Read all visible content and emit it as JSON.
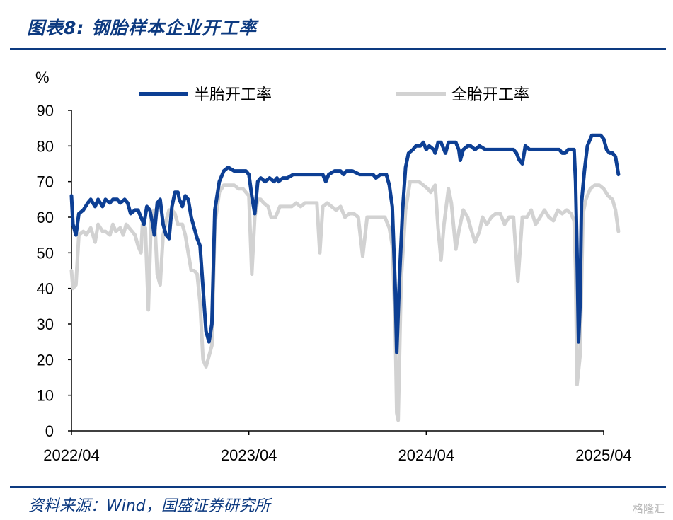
{
  "header": {
    "title": "图表8:  钢胎样本企业开工率"
  },
  "footer": {
    "source": "资料来源：Wind，国盛证券研究所",
    "watermark": "格隆汇"
  },
  "chart_data": {
    "type": "line",
    "ylabel": "%",
    "ylim": [
      0,
      90
    ],
    "yticks": [
      "0",
      "10",
      "20",
      "30",
      "40",
      "50",
      "60",
      "70",
      "80",
      "90"
    ],
    "xlim": [
      0,
      36
    ],
    "xticks": [
      {
        "label": "2022/04",
        "x": 0
      },
      {
        "label": "2023/04",
        "x": 12
      },
      {
        "label": "2024/04",
        "x": 24
      },
      {
        "label": "2025/04",
        "x": 36
      }
    ],
    "grid": false,
    "legend": "top",
    "series": [
      {
        "name": "半胎开工率",
        "color": "#0d3f94",
        "points": [
          [
            0,
            66
          ],
          [
            0.1,
            58
          ],
          [
            0.3,
            55
          ],
          [
            0.5,
            61
          ],
          [
            0.8,
            62
          ],
          [
            1.1,
            64
          ],
          [
            1.3,
            65
          ],
          [
            1.6,
            63
          ],
          [
            1.8,
            65
          ],
          [
            2.1,
            63
          ],
          [
            2.3,
            65
          ],
          [
            2.6,
            64
          ],
          [
            2.8,
            65
          ],
          [
            3.1,
            65
          ],
          [
            3.3,
            64
          ],
          [
            3.6,
            65
          ],
          [
            3.8,
            64
          ],
          [
            4.0,
            61
          ],
          [
            4.3,
            62
          ],
          [
            4.5,
            62
          ],
          [
            4.7,
            60
          ],
          [
            4.9,
            58
          ],
          [
            5.1,
            63
          ],
          [
            5.3,
            62
          ],
          [
            5.5,
            58
          ],
          [
            5.6,
            55
          ],
          [
            5.8,
            64
          ],
          [
            6.0,
            65
          ],
          [
            6.2,
            58
          ],
          [
            6.4,
            55
          ],
          [
            6.6,
            54
          ],
          [
            6.8,
            63
          ],
          [
            7.0,
            67
          ],
          [
            7.2,
            67
          ],
          [
            7.3,
            65
          ],
          [
            7.5,
            63
          ],
          [
            7.7,
            66
          ],
          [
            7.9,
            65
          ],
          [
            8.1,
            60
          ],
          [
            8.3,
            57
          ],
          [
            8.5,
            54
          ],
          [
            8.7,
            52
          ],
          [
            8.9,
            40
          ],
          [
            9.1,
            28
          ],
          [
            9.3,
            25
          ],
          [
            9.5,
            30
          ],
          [
            9.7,
            62
          ],
          [
            10.0,
            70
          ],
          [
            10.3,
            73
          ],
          [
            10.6,
            74
          ],
          [
            11.0,
            73
          ],
          [
            11.4,
            73
          ],
          [
            11.8,
            73
          ],
          [
            12.0,
            72
          ],
          [
            12.2,
            66
          ],
          [
            12.4,
            61
          ],
          [
            12.6,
            70
          ],
          [
            12.8,
            71
          ],
          [
            13.1,
            70
          ],
          [
            13.4,
            71
          ],
          [
            13.7,
            70
          ],
          [
            13.9,
            71
          ],
          [
            14.0,
            70
          ],
          [
            14.3,
            71
          ],
          [
            14.6,
            71
          ],
          [
            15.0,
            72
          ],
          [
            15.5,
            72
          ],
          [
            16.0,
            72
          ],
          [
            16.5,
            72
          ],
          [
            17.0,
            72
          ],
          [
            17.2,
            70
          ],
          [
            17.4,
            72
          ],
          [
            17.8,
            73
          ],
          [
            18.2,
            73
          ],
          [
            18.4,
            72
          ],
          [
            18.6,
            73
          ],
          [
            19.0,
            73
          ],
          [
            19.5,
            72
          ],
          [
            20.0,
            72
          ],
          [
            20.4,
            72
          ],
          [
            20.6,
            71
          ],
          [
            20.9,
            72
          ],
          [
            21.3,
            72
          ],
          [
            21.5,
            69
          ],
          [
            21.7,
            63
          ],
          [
            21.9,
            40
          ],
          [
            22.0,
            22
          ],
          [
            22.2,
            44
          ],
          [
            22.4,
            62
          ],
          [
            22.6,
            74
          ],
          [
            22.8,
            78
          ],
          [
            23.1,
            79
          ],
          [
            23.3,
            80
          ],
          [
            23.6,
            80
          ],
          [
            23.8,
            81
          ],
          [
            24.0,
            79
          ],
          [
            24.2,
            80
          ],
          [
            24.5,
            79
          ],
          [
            24.6,
            78
          ],
          [
            24.8,
            81
          ],
          [
            25.0,
            81
          ],
          [
            25.1,
            80
          ],
          [
            25.3,
            78
          ],
          [
            25.5,
            81
          ],
          [
            25.8,
            81
          ],
          [
            26.0,
            81
          ],
          [
            26.2,
            79
          ],
          [
            26.3,
            76
          ],
          [
            26.5,
            79
          ],
          [
            26.8,
            80
          ],
          [
            27.0,
            80
          ],
          [
            27.3,
            79
          ],
          [
            27.6,
            80
          ],
          [
            28.0,
            79
          ],
          [
            28.5,
            79
          ],
          [
            29.0,
            79
          ],
          [
            29.5,
            79
          ],
          [
            29.9,
            79
          ],
          [
            30.1,
            78
          ],
          [
            30.3,
            76
          ],
          [
            30.5,
            75
          ],
          [
            30.7,
            80
          ],
          [
            31.0,
            79
          ],
          [
            31.5,
            79
          ],
          [
            32.0,
            79
          ],
          [
            32.5,
            79
          ],
          [
            32.8,
            79
          ],
          [
            33.0,
            79
          ],
          [
            33.2,
            78
          ],
          [
            33.4,
            78
          ],
          [
            33.6,
            79
          ],
          [
            33.8,
            79
          ],
          [
            34.0,
            79
          ],
          [
            34.1,
            70
          ],
          [
            34.2,
            50
          ],
          [
            34.3,
            25
          ],
          [
            34.4,
            35
          ],
          [
            34.5,
            64
          ],
          [
            34.7,
            73
          ],
          [
            34.9,
            80
          ],
          [
            35.2,
            83
          ],
          [
            35.5,
            83
          ],
          [
            35.8,
            83
          ],
          [
            36.0,
            82
          ],
          [
            36.2,
            79
          ],
          [
            36.4,
            78
          ],
          [
            36.6,
            78
          ],
          [
            36.8,
            77
          ],
          [
            37.0,
            72
          ]
        ]
      },
      {
        "name": "全胎开工率",
        "color": "#d2d2d2",
        "points": [
          [
            0,
            45
          ],
          [
            0.1,
            40
          ],
          [
            0.3,
            41
          ],
          [
            0.5,
            55
          ],
          [
            0.8,
            56
          ],
          [
            1.0,
            55
          ],
          [
            1.3,
            57
          ],
          [
            1.6,
            53
          ],
          [
            1.8,
            58
          ],
          [
            2.1,
            56
          ],
          [
            2.3,
            56
          ],
          [
            2.6,
            55
          ],
          [
            2.8,
            58
          ],
          [
            3.0,
            56
          ],
          [
            3.3,
            57
          ],
          [
            3.5,
            55
          ],
          [
            3.7,
            58
          ],
          [
            3.9,
            57
          ],
          [
            4.1,
            56
          ],
          [
            4.3,
            55
          ],
          [
            4.5,
            52
          ],
          [
            4.7,
            50
          ],
          [
            4.8,
            58
          ],
          [
            5.0,
            57
          ],
          [
            5.2,
            34
          ],
          [
            5.4,
            61
          ],
          [
            5.6,
            62
          ],
          [
            5.8,
            44
          ],
          [
            6.0,
            41
          ],
          [
            6.2,
            55
          ],
          [
            6.4,
            59
          ],
          [
            6.6,
            62
          ],
          [
            6.8,
            62
          ],
          [
            7.0,
            61
          ],
          [
            7.2,
            58
          ],
          [
            7.5,
            58
          ],
          [
            7.7,
            55
          ],
          [
            7.9,
            50
          ],
          [
            8.1,
            45
          ],
          [
            8.3,
            45
          ],
          [
            8.5,
            44
          ],
          [
            8.7,
            36
          ],
          [
            8.9,
            20
          ],
          [
            9.1,
            18
          ],
          [
            9.3,
            21
          ],
          [
            9.5,
            24
          ],
          [
            9.7,
            58
          ],
          [
            10.0,
            67
          ],
          [
            10.3,
            69
          ],
          [
            10.6,
            69
          ],
          [
            11.0,
            69
          ],
          [
            11.3,
            68
          ],
          [
            11.6,
            68
          ],
          [
            12.0,
            66
          ],
          [
            12.2,
            44
          ],
          [
            12.4,
            60
          ],
          [
            12.6,
            65
          ],
          [
            12.8,
            65
          ],
          [
            13.0,
            64
          ],
          [
            13.3,
            63
          ],
          [
            13.5,
            60
          ],
          [
            13.8,
            60
          ],
          [
            14.1,
            63
          ],
          [
            14.3,
            63
          ],
          [
            14.6,
            63
          ],
          [
            14.9,
            63
          ],
          [
            15.2,
            64
          ],
          [
            15.5,
            63
          ],
          [
            15.8,
            64
          ],
          [
            16.1,
            64
          ],
          [
            16.4,
            64
          ],
          [
            16.6,
            64
          ],
          [
            16.8,
            50
          ],
          [
            17.0,
            63
          ],
          [
            17.3,
            64
          ],
          [
            17.6,
            63
          ],
          [
            17.9,
            62
          ],
          [
            18.2,
            63
          ],
          [
            18.5,
            60
          ],
          [
            18.8,
            61
          ],
          [
            19.1,
            61
          ],
          [
            19.4,
            60
          ],
          [
            19.7,
            49
          ],
          [
            20.0,
            60
          ],
          [
            20.3,
            60
          ],
          [
            20.6,
            60
          ],
          [
            20.9,
            60
          ],
          [
            21.2,
            60
          ],
          [
            21.5,
            57
          ],
          [
            21.7,
            52
          ],
          [
            21.9,
            30
          ],
          [
            22.0,
            5
          ],
          [
            22.1,
            3
          ],
          [
            22.3,
            42
          ],
          [
            22.6,
            62
          ],
          [
            22.9,
            70
          ],
          [
            23.2,
            70
          ],
          [
            23.5,
            70
          ],
          [
            23.8,
            69
          ],
          [
            24.1,
            68
          ],
          [
            24.3,
            67
          ],
          [
            24.6,
            69
          ],
          [
            24.8,
            57
          ],
          [
            25.0,
            48
          ],
          [
            25.2,
            58
          ],
          [
            25.5,
            68
          ],
          [
            25.7,
            64
          ],
          [
            26.0,
            51
          ],
          [
            26.2,
            56
          ],
          [
            26.5,
            62
          ],
          [
            26.8,
            60
          ],
          [
            27.0,
            57
          ],
          [
            27.3,
            53
          ],
          [
            27.6,
            56
          ],
          [
            27.8,
            60
          ],
          [
            28.1,
            58
          ],
          [
            28.4,
            60
          ],
          [
            28.7,
            61
          ],
          [
            29.0,
            61
          ],
          [
            29.3,
            58
          ],
          [
            29.6,
            60
          ],
          [
            29.9,
            60
          ],
          [
            30.2,
            42
          ],
          [
            30.5,
            60
          ],
          [
            30.8,
            60
          ],
          [
            31.1,
            62
          ],
          [
            31.4,
            58
          ],
          [
            31.7,
            60
          ],
          [
            32.0,
            62
          ],
          [
            32.3,
            60
          ],
          [
            32.6,
            59
          ],
          [
            32.9,
            62
          ],
          [
            33.2,
            61
          ],
          [
            33.5,
            62
          ],
          [
            33.8,
            61
          ],
          [
            34.0,
            59
          ],
          [
            34.1,
            45
          ],
          [
            34.2,
            13
          ],
          [
            34.4,
            21
          ],
          [
            34.6,
            61
          ],
          [
            34.8,
            65
          ],
          [
            35.1,
            68
          ],
          [
            35.4,
            69
          ],
          [
            35.7,
            69
          ],
          [
            36.0,
            68
          ],
          [
            36.3,
            66
          ],
          [
            36.6,
            65
          ],
          [
            36.8,
            62
          ],
          [
            37.0,
            56
          ]
        ]
      }
    ]
  }
}
